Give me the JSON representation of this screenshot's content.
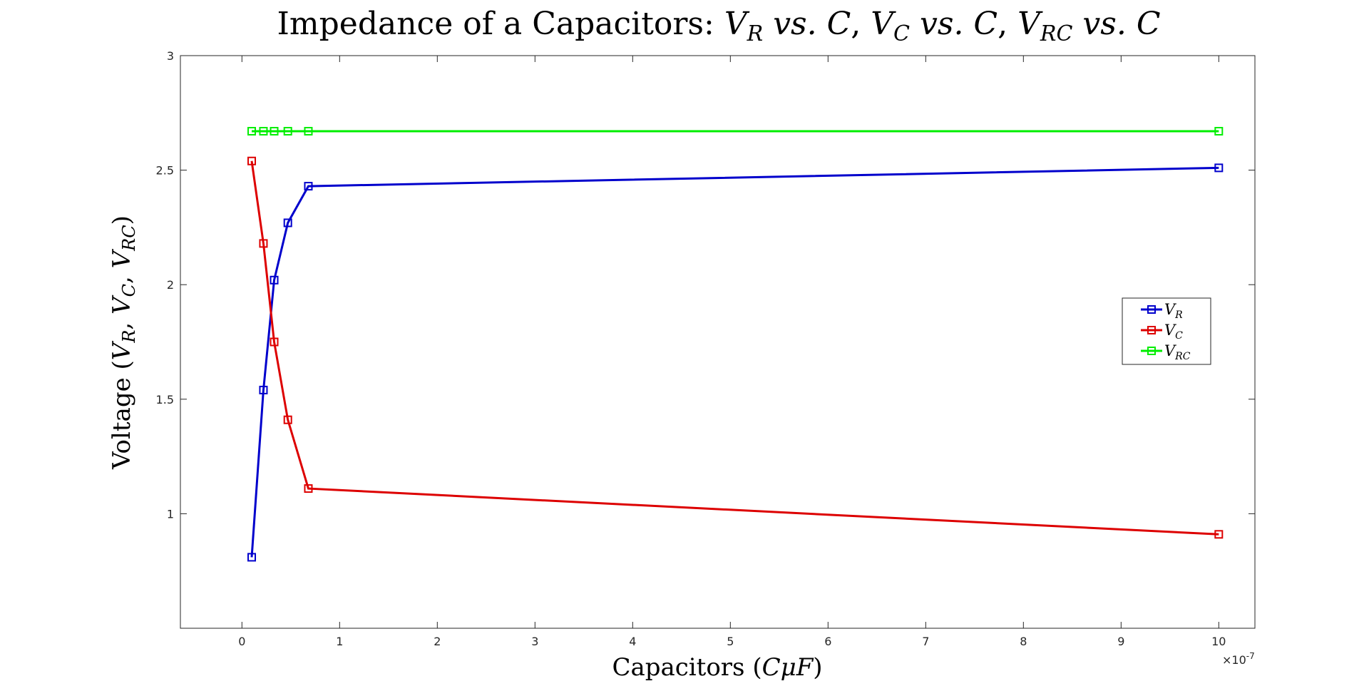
{
  "chart_data": {
    "type": "line",
    "title": "Impedance of a Capacitors: V_R vs. C, V_C vs. C, V_RC vs. C",
    "title_parts": {
      "prefix": "Impedance of a Capacitors: ",
      "v": "V",
      "r": "R",
      "c": "C",
      "rc": "RC",
      "vs": " vs. ",
      "comma": ", "
    },
    "xlabel": "Capacitors (CμF)",
    "xlabel_parts": {
      "text": "Capacitors (",
      "math": "CμF",
      "close": ")"
    },
    "ylabel": "Voltage (V_R, V_C, V_RC)",
    "ylabel_parts": {
      "text": "Voltage (",
      "v": "V",
      "r": "R",
      "c": "C",
      "rc": "RC",
      "sep": ", ",
      "close": ")"
    },
    "x_multiplier": "×10",
    "x_multiplier_exp": "-7",
    "xlim": [
      -0.63,
      10.37
    ],
    "ylim": [
      0.5,
      3.0
    ],
    "xticks": [
      0,
      1,
      2,
      3,
      4,
      5,
      6,
      7,
      8,
      9,
      10
    ],
    "yticks": [
      1,
      1.5,
      2,
      2.5,
      3
    ],
    "ytick_labels": [
      "1",
      "1.5",
      "2",
      "2.5",
      "3"
    ],
    "grid": false,
    "legend_position": "east",
    "x": [
      0.1,
      0.22,
      0.33,
      0.47,
      0.68,
      10
    ],
    "series": [
      {
        "name": "V_R",
        "label_main": "V",
        "label_sub": "R",
        "color": "#0000cc",
        "values": [
          0.81,
          1.54,
          2.02,
          2.27,
          2.43,
          2.51
        ]
      },
      {
        "name": "V_C",
        "label_main": "V",
        "label_sub": "C",
        "color": "#dd0000",
        "values": [
          2.54,
          2.18,
          1.75,
          1.41,
          1.11,
          0.91
        ]
      },
      {
        "name": "V_RC",
        "label_main": "V",
        "label_sub": "RC",
        "color": "#00ee00",
        "values": [
          2.67,
          2.67,
          2.67,
          2.67,
          2.67,
          2.67
        ]
      }
    ]
  }
}
